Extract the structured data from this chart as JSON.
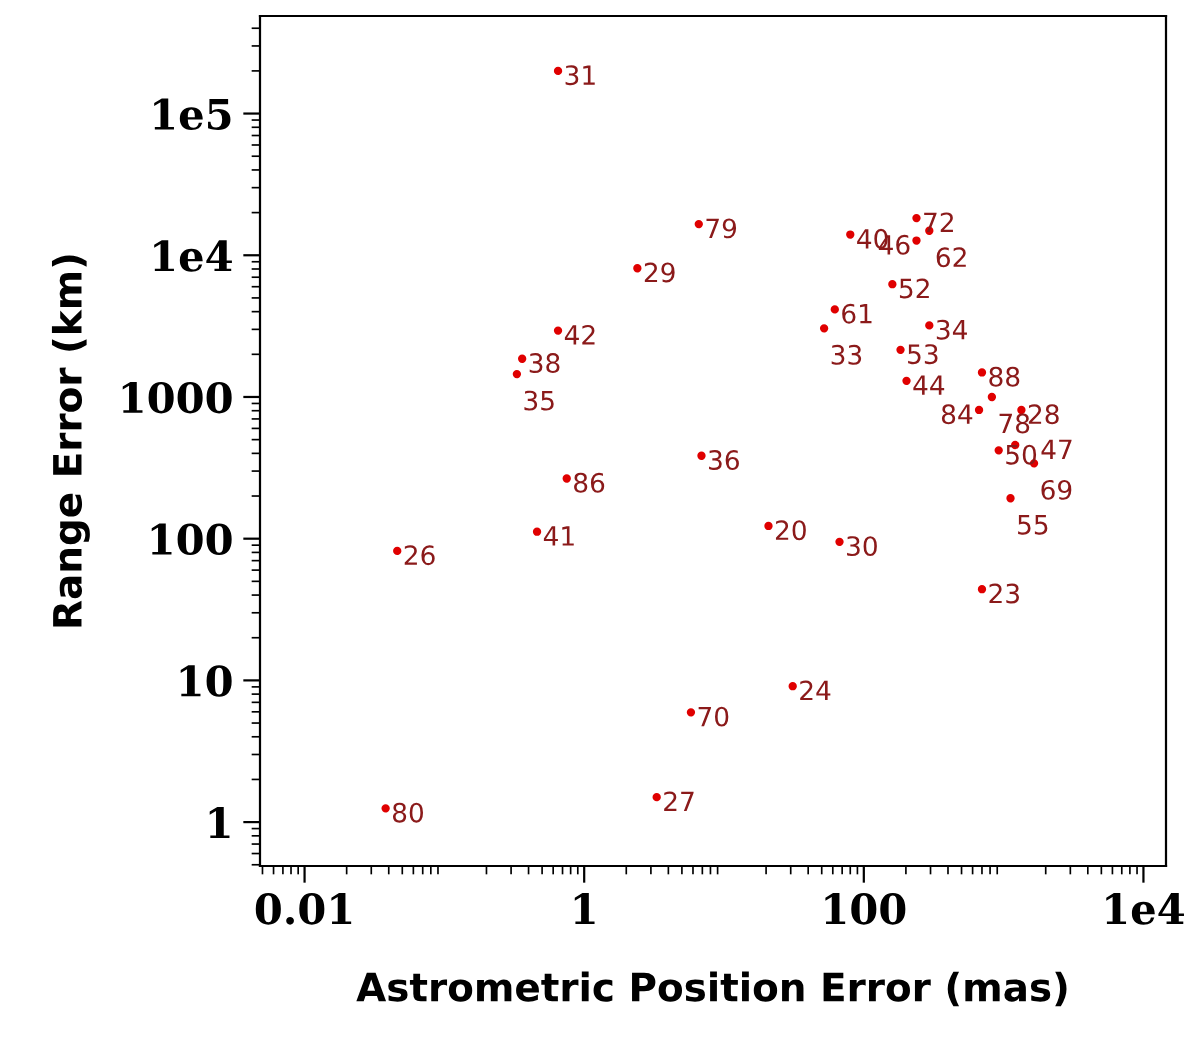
{
  "chart_data": {
    "type": "scatter",
    "xlabel": "Astrometric Position Error (mas)",
    "ylabel": "Range Error (km)",
    "log": "xy",
    "grid": false,
    "marker": "circle",
    "xlim": [
      0.0048,
      14500
    ],
    "ylim": [
      0.49,
      488000
    ],
    "xticks": [
      {
        "value": 0.01,
        "label": "0.01"
      },
      1,
      100,
      {
        "value": 10000,
        "label": "1e4"
      }
    ],
    "yticks": [
      1,
      10,
      100,
      1000,
      {
        "value": 10000,
        "label": "1e4"
      },
      {
        "value": 100000,
        "label": "1e5"
      }
    ],
    "series": [
      {
        "color": "#e00000",
        "x": [
          0.65,
          6.6,
          2.4,
          80,
          238,
          294,
          238,
          160,
          62,
          52,
          294,
          183,
          202,
          700,
          824,
          667,
          1340,
          922,
          1210,
          1650,
          1120,
          700,
          20.8,
          67,
          31,
          5.8,
          3.3,
          0.038,
          0.046,
          0.46,
          0.75,
          6.9,
          0.65,
          0.36,
          0.33
        ],
        "values": [
          200000,
          16600,
          8100,
          14000,
          18300,
          14900,
          12700,
          6250,
          4150,
          3050,
          3200,
          2150,
          1300,
          1490,
          1000,
          810,
          810,
          420,
          458,
          340,
          193,
          44,
          123,
          95,
          9.1,
          5.95,
          1.5,
          1.25,
          82,
          112,
          266,
          385,
          2940,
          1860,
          1450
        ]
      }
    ],
    "annotations": [
      {
        "text": "31",
        "x": 0.65,
        "y": 200000
      },
      {
        "text": "79",
        "x": 6.6,
        "y": 16600
      },
      {
        "text": "29",
        "x": 2.4,
        "y": 8100
      },
      {
        "text": "40",
        "x": 80,
        "y": 14000
      },
      {
        "text": "72",
        "x": 238,
        "y": 18300
      },
      {
        "text": "62",
        "x": 294,
        "y": 14900
      },
      {
        "text": "46",
        "x": 238,
        "y": 12700
      },
      {
        "text": "52",
        "x": 160,
        "y": 6250
      },
      {
        "text": "61",
        "x": 62,
        "y": 4150
      },
      {
        "text": "33",
        "x": 52,
        "y": 3050
      },
      {
        "text": "34",
        "x": 294,
        "y": 3200
      },
      {
        "text": "53",
        "x": 183,
        "y": 2150
      },
      {
        "text": "44",
        "x": 202,
        "y": 1300
      },
      {
        "text": "88",
        "x": 700,
        "y": 1490
      },
      {
        "text": "78",
        "x": 824,
        "y": 1000
      },
      {
        "text": "84",
        "x": 667,
        "y": 810
      },
      {
        "text": "28",
        "x": 1340,
        "y": 810
      },
      {
        "text": "50",
        "x": 922,
        "y": 420
      },
      {
        "text": "47",
        "x": 1210,
        "y": 458
      },
      {
        "text": "69",
        "x": 1650,
        "y": 340
      },
      {
        "text": "55",
        "x": 1120,
        "y": 193
      },
      {
        "text": "23",
        "x": 700,
        "y": 44
      },
      {
        "text": "20",
        "x": 20.8,
        "y": 123
      },
      {
        "text": "30",
        "x": 67,
        "y": 95
      },
      {
        "text": "24",
        "x": 31,
        "y": 9.1
      },
      {
        "text": "70",
        "x": 5.8,
        "y": 5.95
      },
      {
        "text": "27",
        "x": 3.3,
        "y": 1.5
      },
      {
        "text": "80",
        "x": 0.038,
        "y": 1.25
      },
      {
        "text": "26",
        "x": 0.046,
        "y": 82
      },
      {
        "text": "41",
        "x": 0.46,
        "y": 112
      },
      {
        "text": "86",
        "x": 0.75,
        "y": 266
      },
      {
        "text": "36",
        "x": 6.9,
        "y": 385
      },
      {
        "text": "42",
        "x": 0.65,
        "y": 2940
      },
      {
        "text": "38",
        "x": 0.36,
        "y": 1860
      },
      {
        "text": "35",
        "x": 0.33,
        "y": 1450
      }
    ]
  }
}
